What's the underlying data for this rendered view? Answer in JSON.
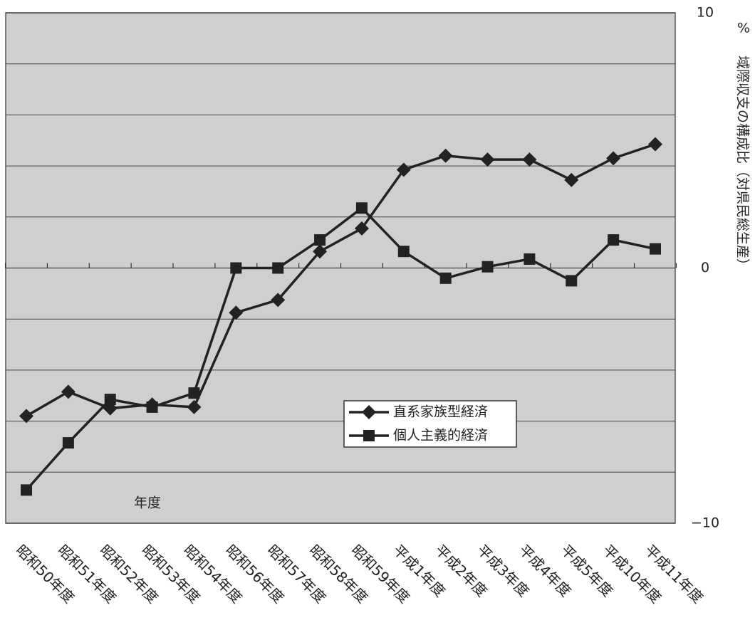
{
  "chart_data": {
    "type": "line",
    "x_label": "年度",
    "y_label": "域際収支の構成比（対県民総生産）",
    "y_unit": "%",
    "categories": [
      "昭和50年度",
      "昭和51年度",
      "昭和52年度",
      "昭和53年度",
      "昭和54年度",
      "昭和56年度",
      "昭和57年度",
      "昭和58年度",
      "昭和59年度",
      "平成1年度",
      "平成2年度",
      "平成3年度",
      "平成4年度",
      "平成5年度",
      "平成10年度",
      "平成11年度"
    ],
    "series": [
      {
        "name": "直系家族型経済",
        "color": "#222222",
        "marker": "diamond",
        "values": [
          -5.8,
          -4.85,
          -5.5,
          -5.35,
          -5.45,
          -1.75,
          -1.25,
          0.65,
          1.55,
          3.85,
          4.4,
          4.25,
          4.25,
          3.45,
          4.3,
          4.85
        ]
      },
      {
        "name": "個人主義的経済",
        "color": "#222222",
        "marker": "square",
        "values": [
          -8.7,
          -6.85,
          -5.15,
          -5.45,
          -4.9,
          0,
          0,
          1.1,
          2.35,
          0.65,
          -0.4,
          0.05,
          0.35,
          -0.5,
          1.1,
          0.75
        ]
      }
    ],
    "ylim": [
      -10,
      10
    ],
    "yticks": [
      {
        "value": -10,
        "label": "−10"
      },
      0,
      10
    ],
    "ygrid": [
      -8,
      -6,
      -4,
      -2,
      2,
      4,
      6,
      8
    ],
    "grid": true
  }
}
